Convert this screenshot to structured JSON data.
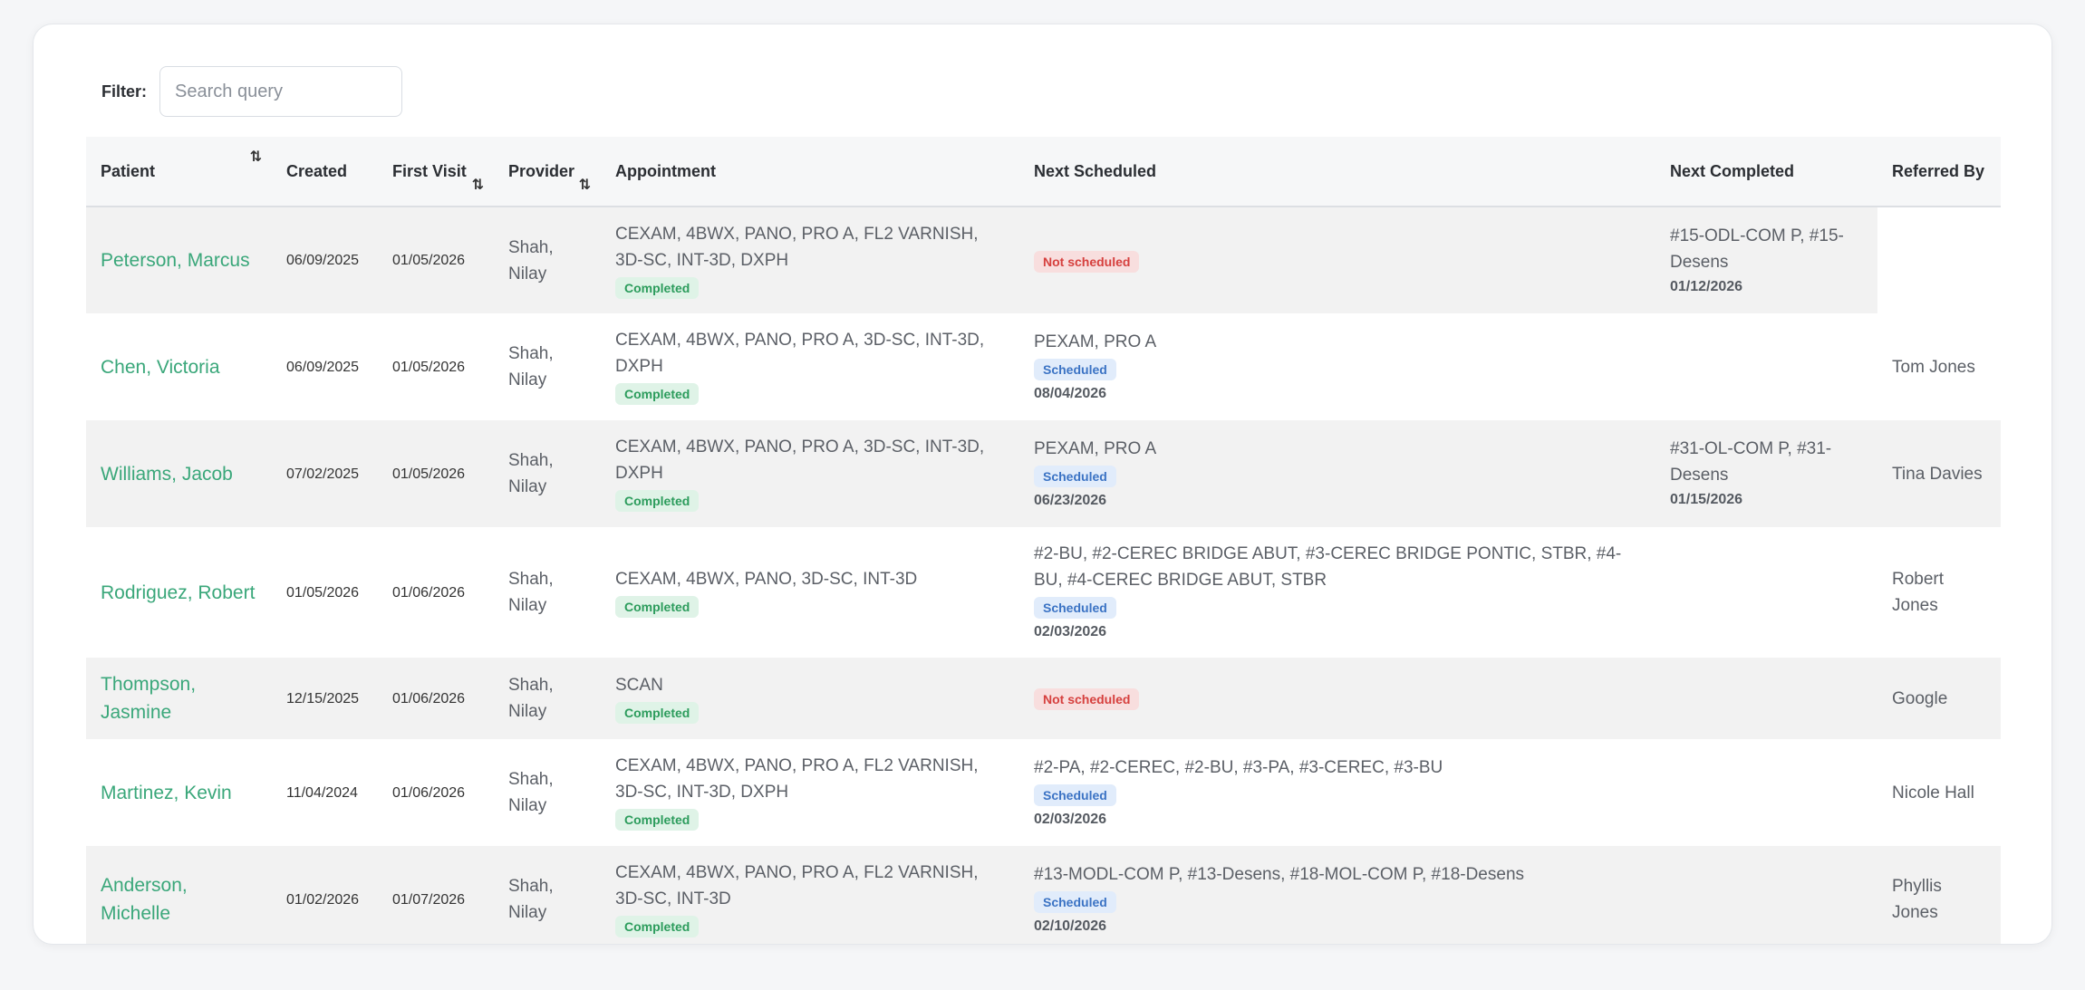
{
  "filter": {
    "label": "Filter:",
    "placeholder": "Search query"
  },
  "columns": {
    "patient": "Patient",
    "created": "Created",
    "first_visit": "First Visit",
    "provider": "Provider",
    "appointment": "Appointment",
    "next_scheduled": "Next Scheduled",
    "next_completed": "Next Completed",
    "referred_by": "Referred By"
  },
  "sort_icon": "sort-arrows-icon",
  "badges": {
    "completed": "Completed",
    "scheduled": "Scheduled",
    "not_scheduled": "Not scheduled"
  },
  "rows": [
    {
      "patient": "Peterson, Marcus",
      "created": "06/09/2025",
      "first_visit": "01/05/2026",
      "provider": "Shah, Nilay",
      "appointment": "CEXAM, 4BWX, PANO, PRO A, FL2 VARNISH, 3D-SC, INT-3D, DXPH",
      "appointment_status": "Completed",
      "next_scheduled": "",
      "next_scheduled_status": "Not scheduled",
      "next_scheduled_date": "",
      "next_completed": "#15-ODL-COM P, #15-Desens",
      "next_completed_date": "01/12/2026",
      "referred_by": ""
    },
    {
      "patient": "Chen, Victoria",
      "created": "06/09/2025",
      "first_visit": "01/05/2026",
      "provider": "Shah, Nilay",
      "appointment": "CEXAM, 4BWX, PANO, PRO A, 3D-SC, INT-3D, DXPH",
      "appointment_status": "Completed",
      "next_scheduled": "PEXAM, PRO A",
      "next_scheduled_status": "Scheduled",
      "next_scheduled_date": "08/04/2026",
      "next_completed": "",
      "next_completed_date": "",
      "referred_by": "Tom Jones"
    },
    {
      "patient": "Williams, Jacob",
      "created": "07/02/2025",
      "first_visit": "01/05/2026",
      "provider": "Shah, Nilay",
      "appointment": "CEXAM, 4BWX, PANO, PRO A, 3D-SC, INT-3D, DXPH",
      "appointment_status": "Completed",
      "next_scheduled": "PEXAM, PRO A",
      "next_scheduled_status": "Scheduled",
      "next_scheduled_date": "06/23/2026",
      "next_completed": "#31-OL-COM P, #31-Desens",
      "next_completed_date": "01/15/2026",
      "referred_by": "Tina Davies"
    },
    {
      "patient": "Rodriguez, Robert",
      "created": "01/05/2026",
      "first_visit": "01/06/2026",
      "provider": "Shah, Nilay",
      "appointment": "CEXAM, 4BWX, PANO, 3D-SC, INT-3D",
      "appointment_status": "Completed",
      "next_scheduled": "#2-BU, #2-CEREC BRIDGE ABUT, #3-CEREC BRIDGE PONTIC, STBR, #4-BU, #4-CEREC BRIDGE ABUT, STBR",
      "next_scheduled_status": "Scheduled",
      "next_scheduled_date": "02/03/2026",
      "next_completed": "",
      "next_completed_date": "",
      "referred_by": "Robert Jones"
    },
    {
      "patient": "Thompson, Jasmine",
      "created": "12/15/2025",
      "first_visit": "01/06/2026",
      "provider": "Shah, Nilay",
      "appointment": "SCAN",
      "appointment_status": "Completed",
      "next_scheduled": "",
      "next_scheduled_status": "Not scheduled",
      "next_scheduled_date": "",
      "next_completed": "",
      "next_completed_date": "",
      "referred_by": "Google"
    },
    {
      "patient": "Martinez, Kevin",
      "created": "11/04/2024",
      "first_visit": "01/06/2026",
      "provider": "Shah, Nilay",
      "appointment": "CEXAM, 4BWX, PANO, PRO A, FL2 VARNISH, 3D-SC, INT-3D, DXPH",
      "appointment_status": "Completed",
      "next_scheduled": "#2-PA, #2-CEREC, #2-BU, #3-PA, #3-CEREC, #3-BU",
      "next_scheduled_status": "Scheduled",
      "next_scheduled_date": "02/03/2026",
      "next_completed": "",
      "next_completed_date": "",
      "referred_by": "Nicole Hall"
    },
    {
      "patient": "Anderson, Michelle",
      "created": "01/02/2026",
      "first_visit": "01/07/2026",
      "provider": "Shah, Nilay",
      "appointment": "CEXAM, 4BWX, PANO, PRO A, FL2 VARNISH, 3D-SC, INT-3D",
      "appointment_status": "Completed",
      "next_scheduled": "#13-MODL-COM P, #13-Desens, #18-MOL-COM P, #18-Desens",
      "next_scheduled_status": "Scheduled",
      "next_scheduled_date": "02/10/2026",
      "next_completed": "",
      "next_completed_date": "",
      "referred_by": "Phyllis Jones"
    }
  ],
  "colors": {
    "link": "#3aa77a",
    "completed_bg": "#dff3e7",
    "completed_fg": "#2c9c5c",
    "scheduled_bg": "#e1ecfb",
    "scheduled_fg": "#3b73c4",
    "not_scheduled_bg": "#f8dede",
    "not_scheduled_fg": "#d6403e"
  }
}
